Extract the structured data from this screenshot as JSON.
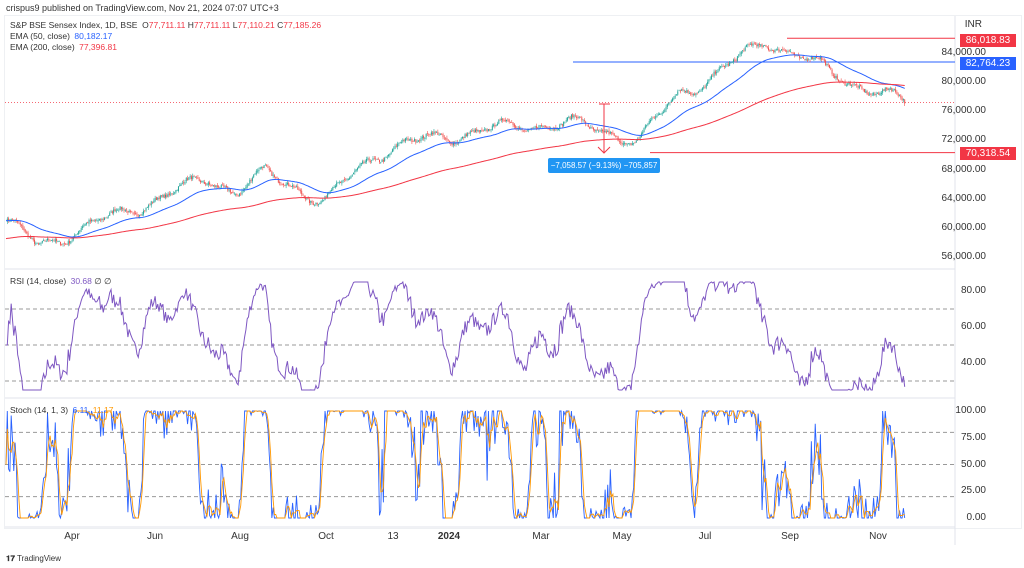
{
  "published": "crispus9 published on TradingView.com, Nov 21, 2024 07:07 UTC+3",
  "legend": {
    "symbol": "S&P BSE Sensex Index, 1D, BSE",
    "o_label": "O",
    "o": "77,711.11",
    "h_label": "H",
    "h": "77,711.11",
    "l_label": "L",
    "l": "77,110.21",
    "c_label": "C",
    "c": "77,185.26",
    "ema50_label": "EMA (50, close)",
    "ema50": "80,182.17",
    "ema200_label": "EMA (200, close)",
    "ema200": "77,396.81",
    "rsi_label": "RSI (14, close)",
    "rsi": "30.68",
    "rsi_extra": "∅ ∅",
    "stoch_label": "Stoch (14, 1, 3)",
    "stoch_k": "6.11",
    "stoch_d": "11.17"
  },
  "currency": "INR",
  "price_ticks": [
    "84,000.00",
    "80,000.00",
    "76,000.00",
    "72,000.00",
    "68,000.00",
    "64,000.00",
    "60,000.00",
    "56,000.00"
  ],
  "rsi_ticks": [
    "80.00",
    "60.00",
    "40.00"
  ],
  "stoch_ticks": [
    "100.00",
    "75.00",
    "50.00",
    "25.00",
    "0.00"
  ],
  "time_ticks": [
    "Apr",
    "Jun",
    "Aug",
    "Oct",
    "13",
    "2024",
    "Mar",
    "May",
    "Jul",
    "Sep",
    "Nov"
  ],
  "tags": {
    "high": "86,018.83",
    "mid": "82,764.23",
    "low": "70,318.54"
  },
  "measure": "−7,058.57 (−9.13%) −705,857",
  "footer": "TradingView",
  "colors": {
    "up": "#26a69a",
    "down": "#ef5350",
    "ema50": "#2962ff",
    "ema200": "#f23645",
    "rsi": "#7e57c2",
    "k": "#2962ff",
    "d": "#ff9800"
  },
  "chart_data": {
    "type": "candlestick",
    "title": "S&P BSE Sensex Index, 1D, BSE",
    "ylabel": "INR",
    "ylim": [
      55000,
      87000
    ],
    "key_closes": {
      "day": [
        0,
        25,
        46,
        103,
        156,
        177,
        200,
        225,
        245,
        284,
        306,
        370,
        432,
        467,
        488,
        519,
        543,
        586,
        635,
        652,
        693
      ],
      "close": [
        61000,
        57500,
        59000,
        63000,
        66800,
        65000,
        67500,
        65500,
        63500,
        70000,
        71500,
        73500,
        74500,
        73000,
        72000,
        78500,
        80500,
        85800,
        81500,
        80000,
        77200
      ]
    },
    "levels": [
      86018.83,
      82764.23,
      70318.54
    ],
    "indicators": [
      "EMA 50",
      "EMA 200",
      "RSI 14",
      "Stoch 14,1,3"
    ]
  }
}
